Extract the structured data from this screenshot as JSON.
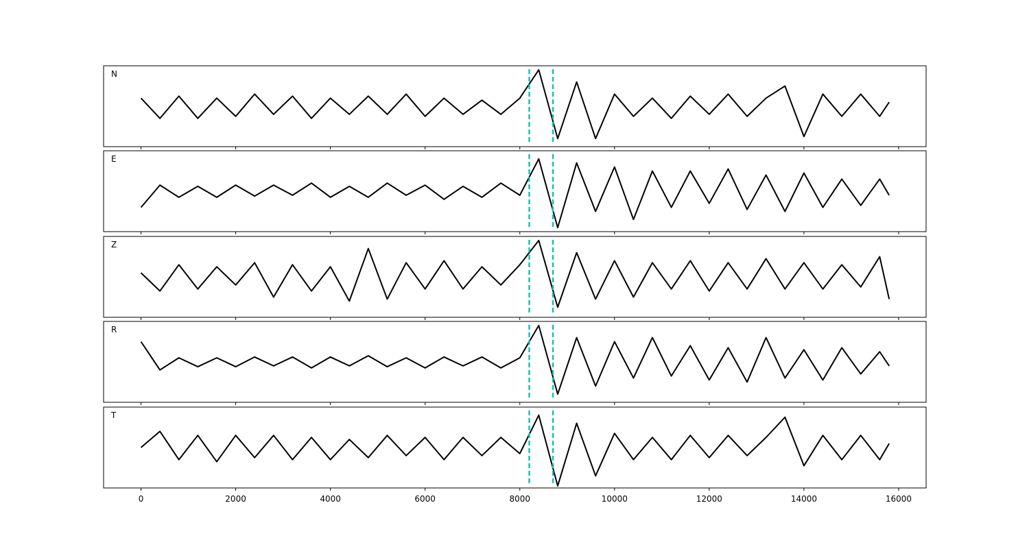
{
  "chart_data": [
    {
      "type": "line",
      "label": "N",
      "color": "#000000",
      "x": [
        0,
        400,
        800,
        1200,
        1600,
        2000,
        2400,
        2800,
        3200,
        3600,
        4000,
        4400,
        4800,
        5200,
        5600,
        6000,
        6400,
        6800,
        7200,
        7600,
        8000,
        8400,
        8800,
        9200,
        9600,
        10000,
        10400,
        10800,
        11200,
        11600,
        12000,
        12400,
        12800,
        13200,
        13600,
        14000,
        14400,
        14800,
        15200,
        15600,
        15800
      ],
      "values": [
        0.2,
        -0.3,
        0.25,
        -0.3,
        0.2,
        -0.25,
        0.3,
        -0.2,
        0.25,
        -0.3,
        0.2,
        -0.2,
        0.25,
        -0.2,
        0.3,
        -0.25,
        0.2,
        -0.2,
        0.15,
        -0.2,
        0.2,
        0.9,
        -0.8,
        0.6,
        -0.8,
        0.3,
        -0.25,
        0.2,
        -0.3,
        0.25,
        -0.2,
        0.3,
        -0.25,
        0.2,
        0.5,
        -0.75,
        0.3,
        -0.25,
        0.3,
        -0.25,
        0.1
      ],
      "vlines": [
        8200,
        8700
      ],
      "vline_color": "#17bfbf",
      "xlim": [
        -790,
        16580
      ],
      "ylim": [
        -1,
        1
      ],
      "xticks": [
        0,
        2000,
        4000,
        6000,
        8000,
        10000,
        12000,
        14000,
        16000
      ],
      "tick_labels": false
    },
    {
      "type": "line",
      "label": "E",
      "color": "#000000",
      "x": [
        0,
        400,
        800,
        1200,
        1600,
        2000,
        2400,
        2800,
        3200,
        3600,
        4000,
        4400,
        4800,
        5200,
        5600,
        6000,
        6400,
        6800,
        7200,
        7600,
        8000,
        8400,
        8800,
        9200,
        9600,
        10000,
        10400,
        10800,
        11200,
        11600,
        12000,
        12400,
        12800,
        13200,
        13600,
        14000,
        14400,
        14800,
        15200,
        15600,
        15800
      ],
      "values": [
        -0.4,
        0.15,
        -0.15,
        0.12,
        -0.15,
        0.15,
        -0.12,
        0.15,
        -0.1,
        0.2,
        -0.15,
        0.12,
        -0.15,
        0.2,
        -0.1,
        0.15,
        -0.2,
        0.12,
        -0.15,
        0.2,
        -0.1,
        0.8,
        -0.9,
        0.7,
        -0.5,
        0.6,
        -0.7,
        0.5,
        -0.4,
        0.5,
        -0.3,
        0.55,
        -0.45,
        0.4,
        -0.5,
        0.45,
        -0.4,
        0.3,
        -0.35,
        0.3,
        -0.1
      ],
      "vlines": [
        8200,
        8700
      ],
      "vline_color": "#17bfbf",
      "xlim": [
        -790,
        16580
      ],
      "ylim": [
        -1,
        1
      ],
      "xticks": [
        0,
        2000,
        4000,
        6000,
        8000,
        10000,
        12000,
        14000,
        16000
      ],
      "tick_labels": false
    },
    {
      "type": "line",
      "label": "Z",
      "color": "#000000",
      "x": [
        0,
        400,
        800,
        1200,
        1600,
        2000,
        2400,
        2800,
        3200,
        3600,
        4000,
        4400,
        4800,
        5200,
        5600,
        6000,
        6400,
        6800,
        7200,
        7600,
        8000,
        8400,
        8800,
        9200,
        9600,
        10000,
        10400,
        10800,
        11200,
        11600,
        12000,
        12400,
        12800,
        13200,
        13600,
        14000,
        14400,
        14800,
        15200,
        15600,
        15800
      ],
      "values": [
        0.1,
        -0.35,
        0.3,
        -0.3,
        0.25,
        -0.2,
        0.35,
        -0.5,
        0.3,
        -0.35,
        0.25,
        -0.6,
        0.7,
        -0.55,
        0.35,
        -0.3,
        0.4,
        -0.3,
        0.25,
        -0.2,
        0.3,
        0.9,
        -0.75,
        0.6,
        -0.55,
        0.4,
        -0.5,
        0.35,
        -0.3,
        0.4,
        -0.35,
        0.35,
        -0.3,
        0.45,
        -0.3,
        0.35,
        -0.3,
        0.3,
        -0.25,
        0.5,
        -0.55
      ],
      "vlines": [
        8200,
        8700
      ],
      "vline_color": "#17bfbf",
      "xlim": [
        -790,
        16580
      ],
      "ylim": [
        -1,
        1
      ],
      "xticks": [
        0,
        2000,
        4000,
        6000,
        8000,
        10000,
        12000,
        14000,
        16000
      ],
      "tick_labels": false
    },
    {
      "type": "line",
      "label": "R",
      "color": "#000000",
      "x": [
        0,
        400,
        800,
        1200,
        1600,
        2000,
        2400,
        2800,
        3200,
        3600,
        4000,
        4400,
        4800,
        5200,
        5600,
        6000,
        6400,
        6800,
        7200,
        7600,
        8000,
        8400,
        8800,
        9200,
        9600,
        10000,
        10400,
        10800,
        11200,
        11600,
        12000,
        12400,
        12800,
        13200,
        13600,
        14000,
        14400,
        14800,
        15200,
        15600,
        15800
      ],
      "values": [
        0.5,
        -0.2,
        0.1,
        -0.12,
        0.1,
        -0.12,
        0.12,
        -0.1,
        0.12,
        -0.15,
        0.12,
        -0.1,
        0.15,
        -0.12,
        0.1,
        -0.15,
        0.12,
        -0.1,
        0.12,
        -0.15,
        0.1,
        0.9,
        -0.8,
        0.6,
        -0.6,
        0.5,
        -0.4,
        0.6,
        -0.35,
        0.4,
        -0.45,
        0.35,
        -0.5,
        0.6,
        -0.4,
        0.3,
        -0.45,
        0.35,
        -0.3,
        0.25,
        -0.1
      ],
      "vlines": [
        8200,
        8700
      ],
      "vline_color": "#17bfbf",
      "xlim": [
        -790,
        16580
      ],
      "ylim": [
        -1,
        1
      ],
      "xticks": [
        0,
        2000,
        4000,
        6000,
        8000,
        10000,
        12000,
        14000,
        16000
      ],
      "tick_labels": false
    },
    {
      "type": "line",
      "label": "T",
      "color": "#000000",
      "x": [
        0,
        400,
        800,
        1200,
        1600,
        2000,
        2400,
        2800,
        3200,
        3600,
        4000,
        4400,
        4800,
        5200,
        5600,
        6000,
        6400,
        6800,
        7200,
        7600,
        8000,
        8400,
        8800,
        9200,
        9600,
        10000,
        10400,
        10800,
        11200,
        11600,
        12000,
        12400,
        12800,
        13200,
        13600,
        14000,
        14400,
        14800,
        15200,
        15600,
        15800
      ],
      "values": [
        0,
        0.4,
        -0.3,
        0.3,
        -0.35,
        0.3,
        -0.25,
        0.3,
        -0.3,
        0.25,
        -0.3,
        0.2,
        -0.25,
        0.3,
        -0.2,
        0.25,
        -0.3,
        0.25,
        -0.2,
        0.25,
        -0.15,
        0.8,
        -0.95,
        0.6,
        -0.7,
        0.35,
        -0.3,
        0.25,
        -0.3,
        0.3,
        -0.25,
        0.3,
        -0.2,
        0.25,
        0.75,
        -0.45,
        0.3,
        -0.3,
        0.3,
        -0.3,
        0.1
      ],
      "vlines": [
        8200,
        8700
      ],
      "vline_color": "#17bfbf",
      "xlim": [
        -790,
        16580
      ],
      "ylim": [
        -1,
        1
      ],
      "xticks": [
        0,
        2000,
        4000,
        6000,
        8000,
        10000,
        12000,
        14000,
        16000
      ],
      "tick_labels": true
    }
  ]
}
